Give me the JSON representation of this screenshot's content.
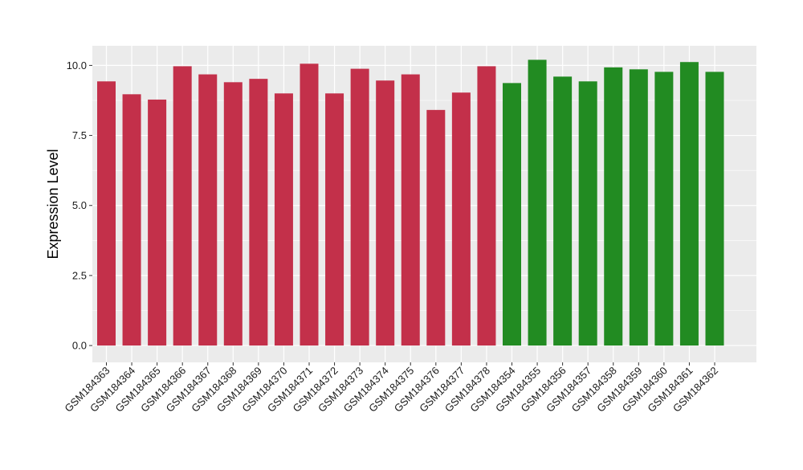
{
  "chart_data": {
    "type": "bar",
    "title": "",
    "xlabel": "",
    "ylabel": "Expression Level",
    "ylim": [
      -0.6,
      10.7
    ],
    "yticks": [
      0.0,
      2.5,
      5.0,
      7.5,
      10.0
    ],
    "ytick_labels": [
      "0.0",
      "2.5",
      "5.0",
      "7.5",
      "10.0"
    ],
    "grid": true,
    "legend": "none",
    "colors": {
      "group1": "#c3304a",
      "group2": "#228b22",
      "panel": "#ebebeb",
      "grid": "#ffffff"
    },
    "categories": [
      "GSM184363",
      "GSM184364",
      "GSM184365",
      "GSM184366",
      "GSM184367",
      "GSM184368",
      "GSM184369",
      "GSM184370",
      "GSM184371",
      "GSM184372",
      "GSM184373",
      "GSM184374",
      "GSM184375",
      "GSM184376",
      "GSM184377",
      "GSM184378",
      "GSM184354",
      "GSM184355",
      "GSM184356",
      "GSM184357",
      "GSM184358",
      "GSM184359",
      "GSM184360",
      "GSM184361",
      "GSM184362"
    ],
    "values": [
      9.43,
      8.97,
      8.78,
      9.97,
      9.68,
      9.4,
      9.52,
      9.0,
      10.06,
      9.0,
      9.88,
      9.46,
      9.68,
      8.41,
      9.03,
      9.97,
      9.37,
      10.2,
      9.6,
      9.43,
      9.93,
      9.86,
      9.77,
      10.12,
      9.77
    ],
    "groups": [
      "group1",
      "group1",
      "group1",
      "group1",
      "group1",
      "group1",
      "group1",
      "group1",
      "group1",
      "group1",
      "group1",
      "group1",
      "group1",
      "group1",
      "group1",
      "group1",
      "group2",
      "group2",
      "group2",
      "group2",
      "group2",
      "group2",
      "group2",
      "group2",
      "group2"
    ]
  }
}
